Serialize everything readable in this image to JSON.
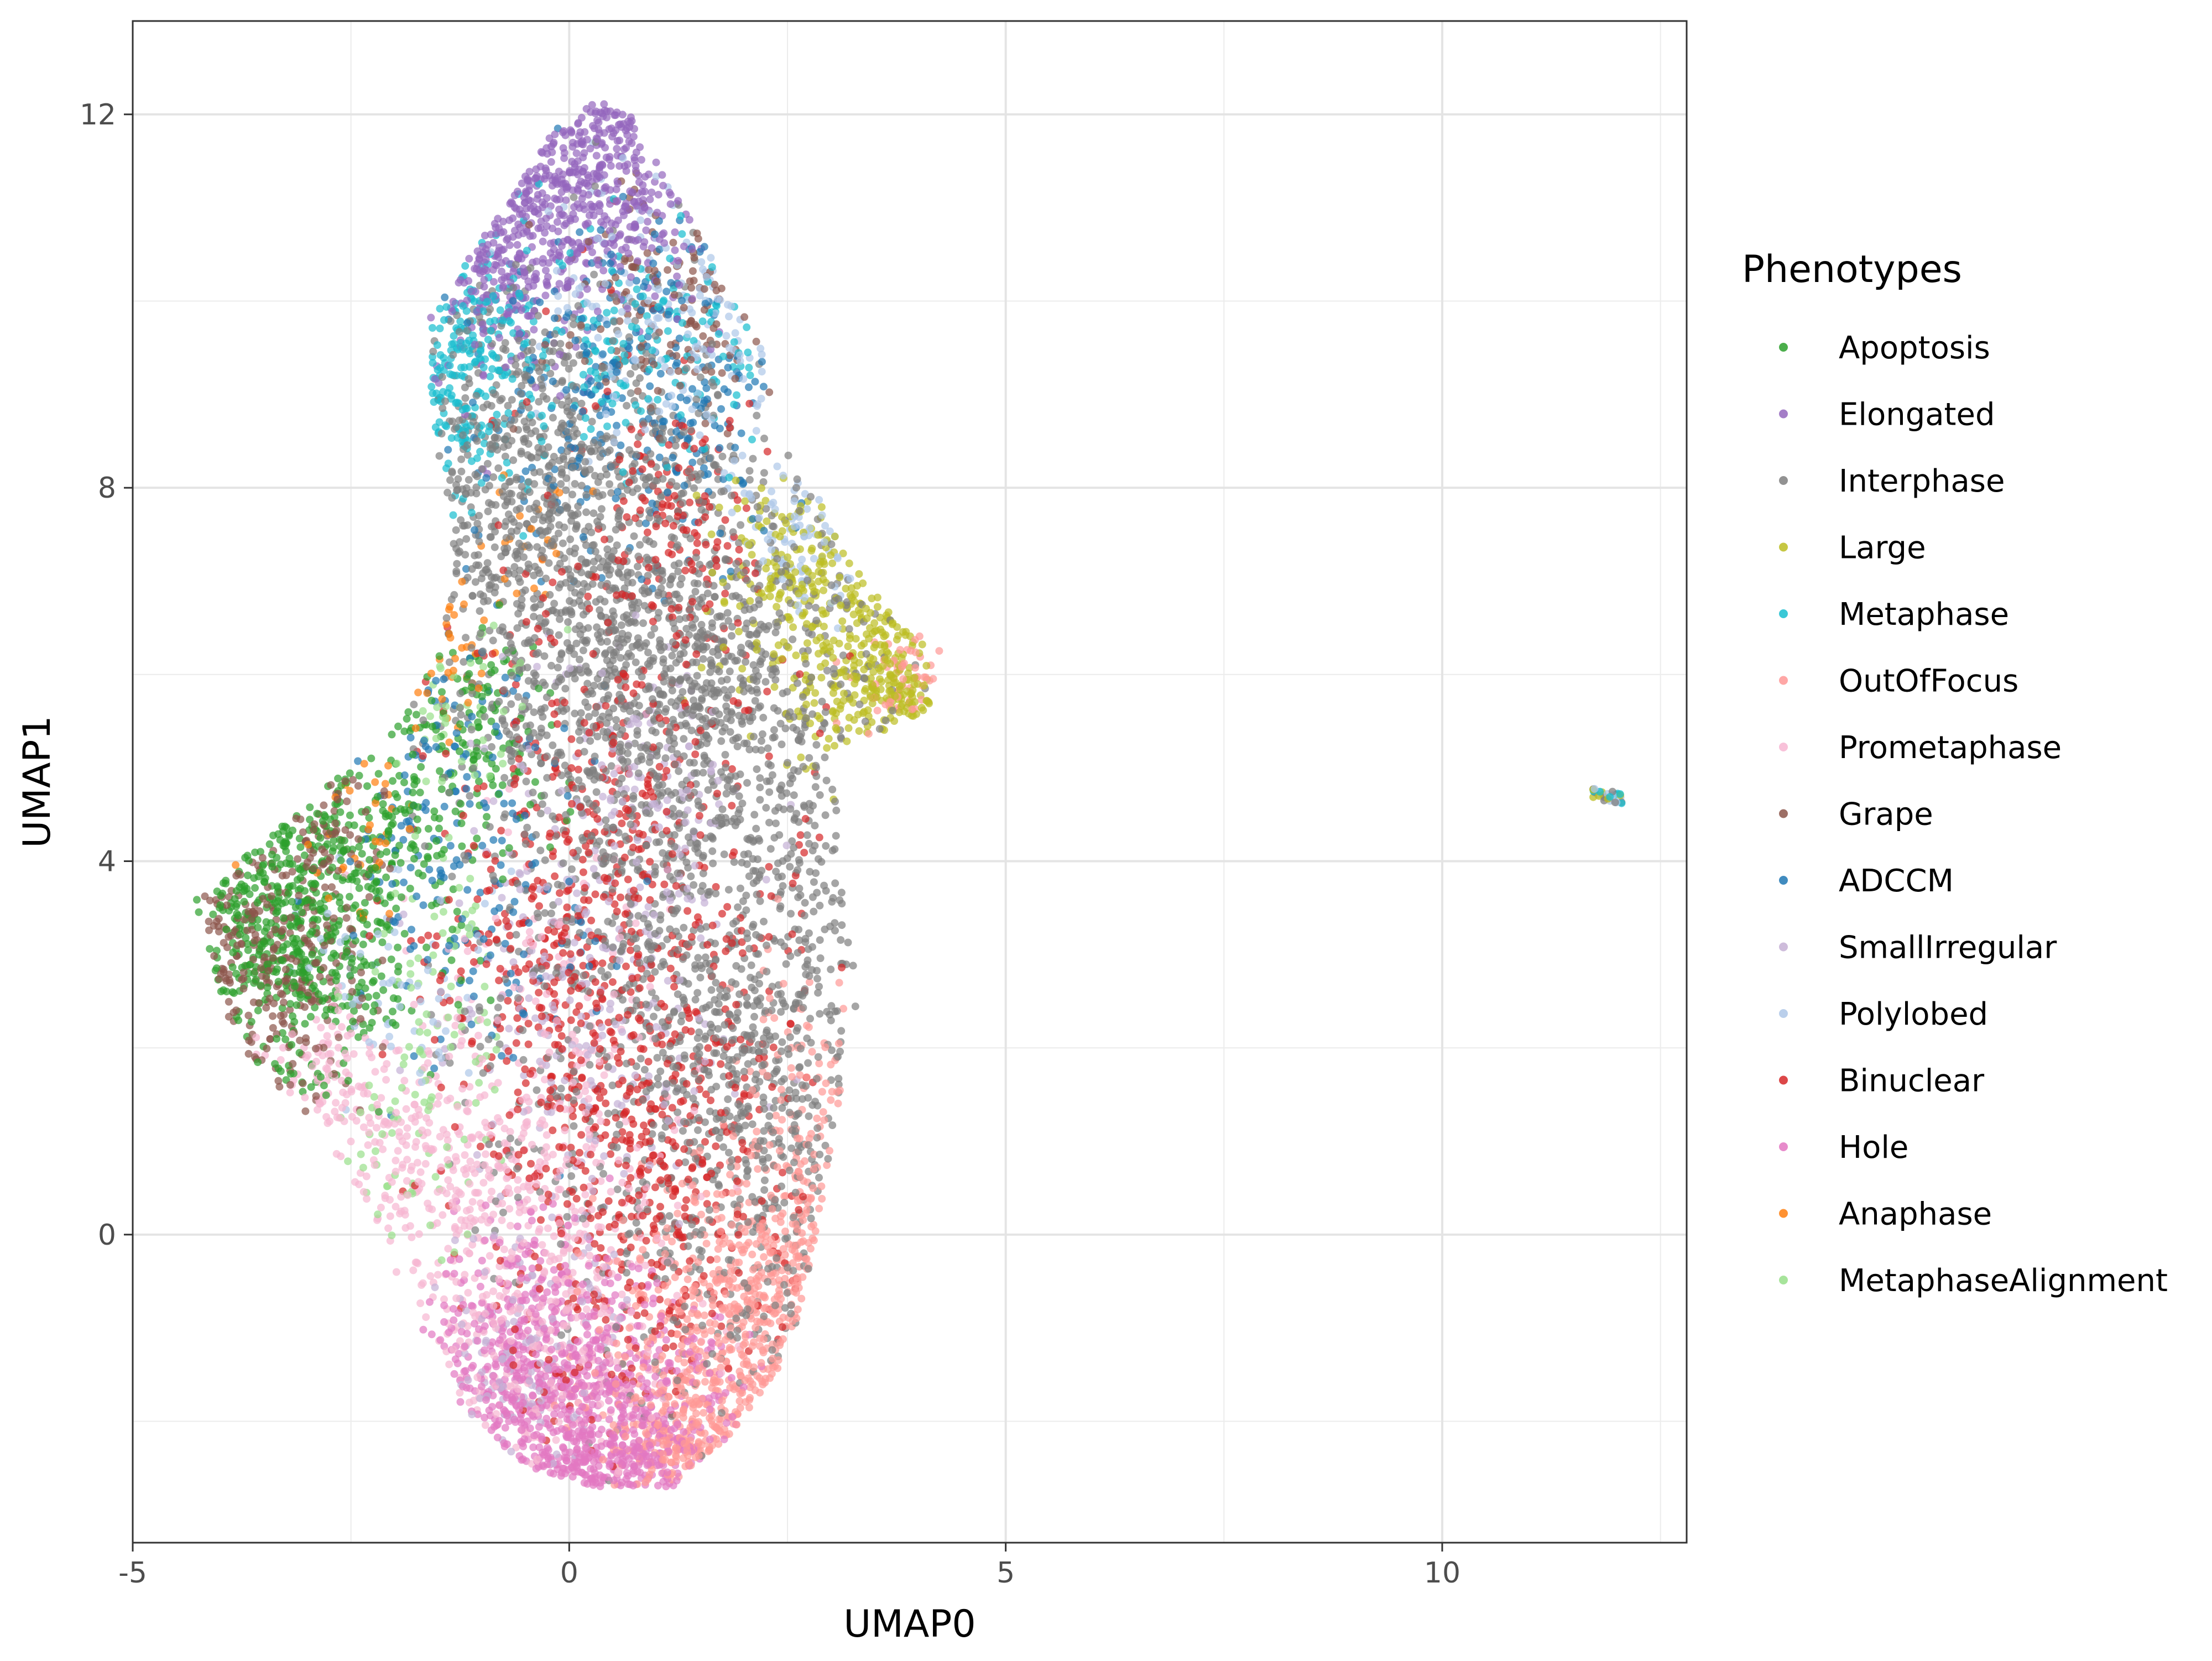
{
  "chart_data": {
    "type": "scatter",
    "xlabel": "UMAP0",
    "ylabel": "UMAP1",
    "xlim": [
      -5,
      12.8
    ],
    "ylim": [
      -3.3,
      13
    ],
    "x_ticks": [
      -5,
      0,
      5,
      10
    ],
    "y_ticks": [
      0,
      4,
      8,
      12
    ],
    "grid": true,
    "legend": {
      "title": "Phenotypes",
      "position": "right"
    },
    "series": [
      {
        "name": "Apoptosis",
        "color": "#2ca02c",
        "regions": [
          [
            -3.2,
            3.2,
            0.6,
            0.8
          ],
          [
            -2.2,
            4.2,
            0.7,
            0.7
          ],
          [
            -1.2,
            5.5,
            0.5,
            0.6
          ]
        ],
        "density": [
          900,
          350,
          200
        ]
      },
      {
        "name": "Elongated",
        "color": "#9467bd",
        "regions": [
          [
            0.0,
            11.2,
            0.8,
            0.6
          ],
          [
            -0.8,
            10.2,
            0.5,
            0.5
          ],
          [
            0.5,
            11.9,
            0.2,
            0.2
          ]
        ],
        "density": [
          800,
          300,
          80
        ]
      },
      {
        "name": "Interphase",
        "color": "#7f7f7f",
        "regions": [
          [
            1.5,
            4.0,
            1.3,
            2.6
          ],
          [
            0.0,
            7.5,
            1.1,
            1.2
          ],
          [
            2.3,
            1.0,
            0.6,
            1.5
          ],
          [
            -0.7,
            8.5,
            0.6,
            0.8
          ],
          [
            1.0,
            6.0,
            1.0,
            0.9
          ]
        ],
        "density": [
          2800,
          1200,
          500,
          400,
          800
        ]
      },
      {
        "name": "Large",
        "color": "#bcbd22",
        "regions": [
          [
            3.3,
            6.3,
            0.6,
            0.6
          ],
          [
            2.5,
            7.2,
            0.4,
            0.5
          ],
          [
            3.8,
            5.8,
            0.35,
            0.3
          ]
        ],
        "density": [
          450,
          200,
          150
        ]
      },
      {
        "name": "Metaphase",
        "color": "#17becf",
        "regions": [
          [
            -1.3,
            9.3,
            0.4,
            0.7
          ],
          [
            0.5,
            9.5,
            0.9,
            0.6
          ]
        ],
        "density": [
          350,
          300
        ]
      },
      {
        "name": "OutOfFocus",
        "color": "#ff9896",
        "regions": [
          [
            1.9,
            -1.2,
            0.7,
            0.9
          ],
          [
            2.6,
            0.5,
            0.4,
            1.0
          ],
          [
            1.5,
            -2.3,
            0.5,
            0.3
          ],
          [
            3.9,
            5.8,
            0.3,
            0.3
          ]
        ],
        "density": [
          900,
          350,
          250,
          100
        ]
      },
      {
        "name": "Prometaphase",
        "color": "#f7b6d2",
        "regions": [
          [
            -0.5,
            -0.8,
            0.9,
            0.9
          ],
          [
            -1.8,
            0.8,
            0.7,
            0.6
          ],
          [
            -2.6,
            1.6,
            0.5,
            0.4
          ],
          [
            -0.3,
            1.5,
            0.8,
            1.2
          ]
        ],
        "density": [
          700,
          300,
          200,
          400
        ]
      },
      {
        "name": "Grape",
        "color": "#8c564b",
        "regions": [
          [
            -3.5,
            3.0,
            0.55,
            0.75
          ],
          [
            1.3,
            10.0,
            0.8,
            0.6
          ],
          [
            -2.7,
            4.2,
            0.3,
            0.4
          ]
        ],
        "density": [
          500,
          250,
          100
        ]
      },
      {
        "name": "ADCCM",
        "color": "#1f77b4",
        "regions": [
          [
            0.8,
            9.0,
            0.9,
            0.9
          ],
          [
            -1.5,
            5.0,
            0.6,
            1.0
          ],
          [
            -0.7,
            3.2,
            0.6,
            0.8
          ]
        ],
        "density": [
          500,
          200,
          150
        ]
      },
      {
        "name": "SmallIrregular",
        "color": "#c5b0d5",
        "regions": [
          [
            0.2,
            2.8,
            0.8,
            1.5
          ],
          [
            -0.5,
            -1.2,
            0.5,
            0.6
          ],
          [
            1.0,
            5.0,
            0.5,
            0.7
          ]
        ],
        "density": [
          500,
          200,
          150
        ]
      },
      {
        "name": "Polylobed",
        "color": "#aec7e8",
        "regions": [
          [
            1.5,
            10.0,
            0.9,
            0.8
          ],
          [
            2.8,
            7.5,
            0.4,
            0.4
          ],
          [
            -2.0,
            2.8,
            0.6,
            0.6
          ]
        ],
        "density": [
          300,
          150,
          120
        ]
      },
      {
        "name": "Binuclear",
        "color": "#d62728",
        "regions": [
          [
            0.6,
            3.5,
            1.0,
            2.5
          ],
          [
            0.9,
            0.5,
            0.9,
            1.2
          ],
          [
            1.3,
            7.6,
            0.4,
            0.6
          ],
          [
            -0.4,
            3.0,
            0.6,
            0.7
          ]
        ],
        "density": [
          1200,
          600,
          200,
          200
        ]
      },
      {
        "name": "Hole",
        "color": "#e377c2",
        "regions": [
          [
            0.2,
            -1.9,
            0.9,
            0.6
          ],
          [
            -0.4,
            -1.0,
            0.6,
            0.6
          ],
          [
            0.5,
            -2.5,
            0.5,
            0.2
          ]
        ],
        "density": [
          1100,
          500,
          200
        ]
      },
      {
        "name": "Anaphase",
        "color": "#ff7f0e",
        "regions": [
          [
            -1.5,
            6.2,
            0.3,
            0.5
          ],
          [
            -2.5,
            4.3,
            0.5,
            0.5
          ],
          [
            -0.5,
            7.5,
            0.4,
            0.5
          ]
        ],
        "density": [
          60,
          60,
          40
        ]
      },
      {
        "name": "MetaphaseAlignment",
        "color": "#98df8a",
        "regions": [
          [
            -1.5,
            2.5,
            0.5,
            0.8
          ],
          [
            -2.0,
            0.8,
            0.5,
            0.5
          ],
          [
            -1.2,
            5.7,
            0.4,
            0.5
          ]
        ],
        "density": [
          120,
          80,
          80
        ]
      }
    ],
    "outlier_cluster": {
      "x": 11.9,
      "y": 4.7,
      "colors": [
        "#aec7e8",
        "#7f7f7f",
        "#bcbd22",
        "#17becf"
      ],
      "count": 30
    }
  }
}
